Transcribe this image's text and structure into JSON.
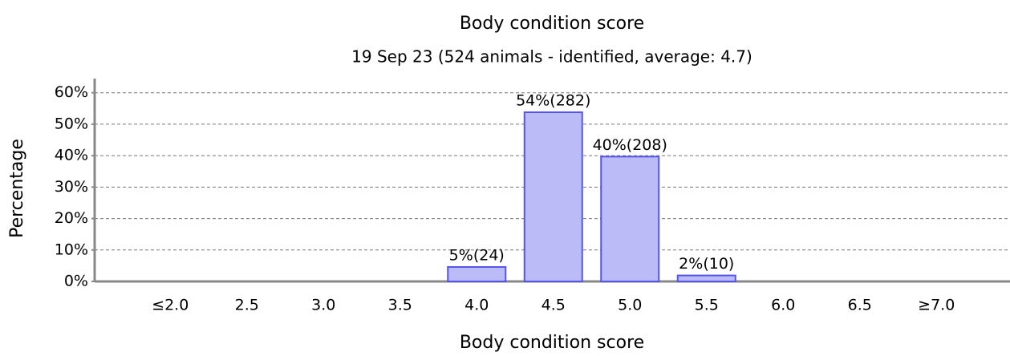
{
  "chart_data": {
    "type": "bar",
    "title": "Body condition score",
    "subtitle": "19 Sep 23 (524 animals - identified, average: 4.7)",
    "x_label": "Body condition score",
    "y_label": "Percentage",
    "categories": [
      "≤2.0",
      "2.5",
      "3.0",
      "3.5",
      "4.0",
      "4.5",
      "5.0",
      "5.5",
      "6.0",
      "6.5",
      "≥7.0"
    ],
    "values": [
      0,
      0,
      0,
      0,
      4.6,
      53.8,
      39.7,
      1.9,
      0,
      0,
      0
    ],
    "value_labels": [
      null,
      null,
      null,
      null,
      "5%(24)",
      "54%(282)",
      "40%(208)",
      "2%(10)",
      null,
      null,
      null
    ],
    "color": "#bbbbf8",
    "edge_color": "#5555ee",
    "ylim": [
      0,
      64
    ],
    "yticks": [
      {
        "value": 0,
        "label": "0%"
      },
      {
        "value": 10,
        "label": "10%"
      },
      {
        "value": 20,
        "label": "20%"
      },
      {
        "value": 30,
        "label": "30%"
      },
      {
        "value": 40,
        "label": "40%"
      },
      {
        "value": 50,
        "label": "50%"
      },
      {
        "value": 60,
        "label": "60%"
      }
    ],
    "grid": true
  }
}
